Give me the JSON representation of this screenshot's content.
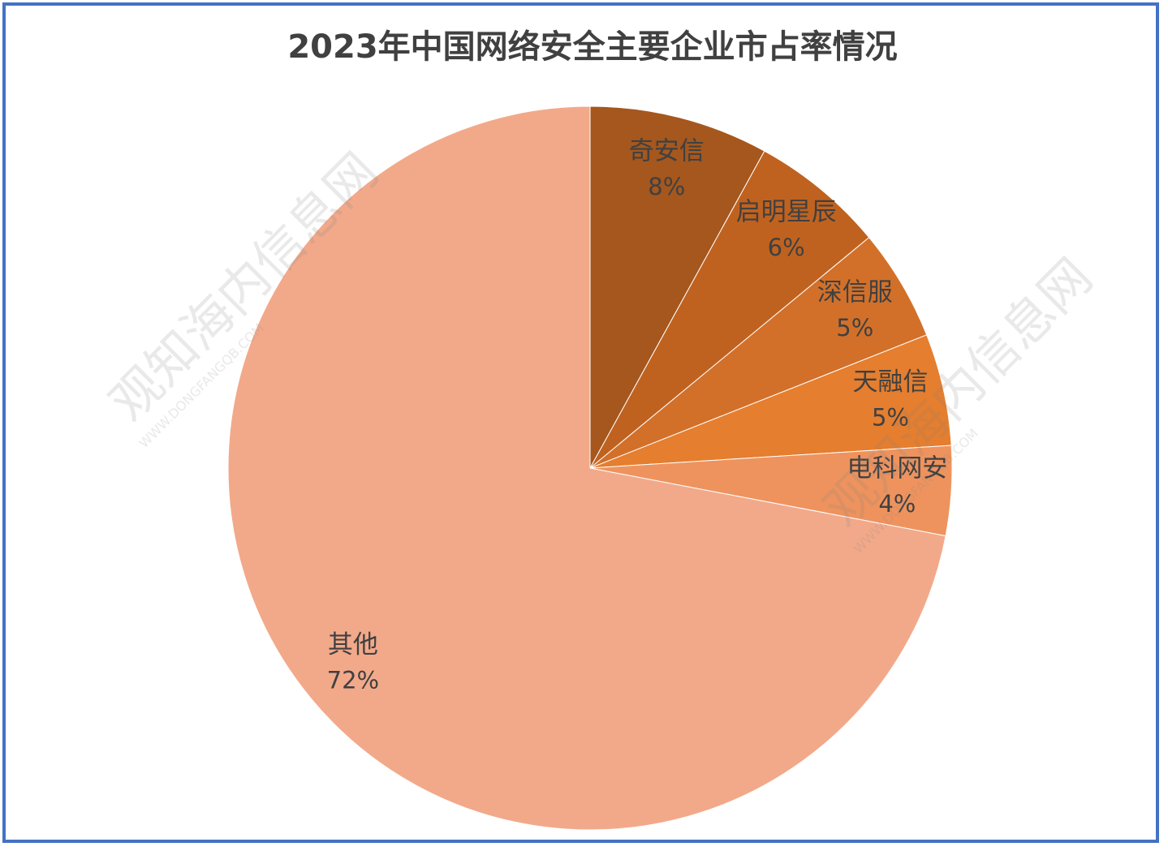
{
  "chart_data": {
    "type": "pie",
    "title": "2023年中国网络安全主要企业市占率情况",
    "categories": [
      "奇安信",
      "启明星辰",
      "深信服",
      "天融信",
      "电科网安",
      "其他"
    ],
    "values": [
      8,
      6,
      5,
      5,
      4,
      72
    ],
    "value_labels": [
      "8%",
      "6%",
      "5%",
      "5%",
      "4%",
      "72%"
    ],
    "colors": [
      "#A5571D",
      "#C0621F",
      "#D2702A",
      "#E57E2E",
      "#EE935E",
      "#F2A98A"
    ],
    "watermark": "观知海内信息网",
    "watermark_url": "WWW.DONGFANGQB.COM"
  }
}
